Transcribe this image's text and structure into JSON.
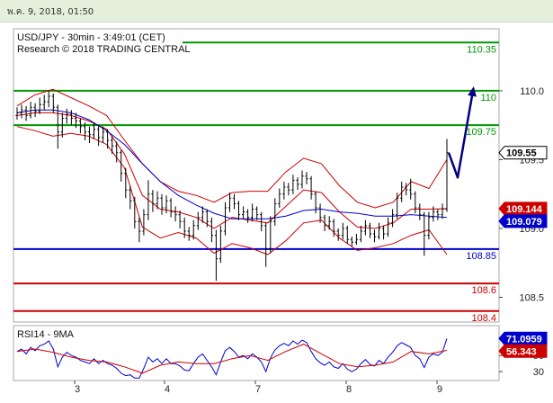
{
  "header": {
    "datetime": "พ.ค. 9, 2018, 01:50"
  },
  "colors": {
    "topbar": "#e5efdc",
    "candle": "#000000",
    "band": "#cc0000",
    "moving_average": "#0000cc",
    "arrow": "#000080",
    "resistance": "#009900",
    "support_blue": "#0000cc",
    "support_red": "#cc0000",
    "rsi": "#0000cc",
    "rsi_ma": "#cc0000",
    "last_price_box": "#ffffff"
  },
  "chart_data": [
    {
      "type": "bar",
      "title": "USD/JPY - 30min - 3:49:01 (CET)",
      "subtitle": "Research © 2018 TRADING CENTRAL",
      "ylim": [
        108.32,
        110.45
      ],
      "grid": false,
      "y_ticks": [
        "110.0",
        "109.5",
        "109.0",
        "108.5"
      ],
      "x_ticks": [
        "3",
        "4",
        "7",
        "8",
        "9"
      ],
      "ohlc": [
        [
          109.82,
          109.88,
          109.79,
          109.84
        ],
        [
          109.84,
          109.9,
          109.8,
          109.86
        ],
        [
          109.86,
          109.89,
          109.78,
          109.82
        ],
        [
          109.82,
          109.92,
          109.8,
          109.88
        ],
        [
          109.88,
          109.91,
          109.81,
          109.85
        ],
        [
          109.85,
          109.95,
          109.83,
          109.9
        ],
        [
          109.9,
          109.97,
          109.86,
          109.92
        ],
        [
          109.92,
          110.0,
          109.88,
          109.96
        ],
        [
          109.96,
          109.98,
          109.84,
          109.88
        ],
        [
          109.88,
          109.9,
          109.58,
          109.7
        ],
        [
          109.7,
          109.84,
          109.66,
          109.8
        ],
        [
          109.8,
          109.87,
          109.76,
          109.83
        ],
        [
          109.83,
          109.86,
          109.75,
          109.8
        ],
        [
          109.8,
          109.84,
          109.73,
          109.78
        ],
        [
          109.78,
          109.8,
          109.69,
          109.74
        ],
        [
          109.74,
          109.77,
          109.64,
          109.7
        ],
        [
          109.7,
          109.74,
          109.62,
          109.68
        ],
        [
          109.68,
          109.77,
          109.65,
          109.72
        ],
        [
          109.72,
          109.75,
          109.6,
          109.66
        ],
        [
          109.66,
          109.74,
          109.62,
          109.7
        ],
        [
          109.7,
          109.72,
          109.58,
          109.64
        ],
        [
          109.64,
          109.67,
          109.54,
          109.6
        ],
        [
          109.6,
          109.63,
          109.48,
          109.55
        ],
        [
          109.55,
          109.57,
          109.34,
          109.4
        ],
        [
          109.4,
          109.44,
          109.22,
          109.28
        ],
        [
          109.28,
          109.31,
          109.14,
          109.2
        ],
        [
          109.2,
          109.23,
          109.0,
          109.05
        ],
        [
          109.05,
          109.08,
          108.9,
          108.98
        ],
        [
          108.98,
          109.14,
          108.95,
          109.1
        ],
        [
          109.1,
          109.35,
          109.06,
          109.25
        ],
        [
          109.25,
          109.28,
          109.12,
          109.18
        ],
        [
          109.18,
          109.27,
          109.14,
          109.22
        ],
        [
          109.22,
          109.25,
          109.1,
          109.15
        ],
        [
          109.15,
          109.24,
          109.11,
          109.2
        ],
        [
          109.2,
          109.22,
          109.08,
          109.12
        ],
        [
          109.12,
          109.16,
          109.05,
          109.1
        ],
        [
          109.1,
          109.13,
          109.0,
          109.05
        ],
        [
          109.05,
          109.08,
          108.93,
          108.98
        ],
        [
          108.98,
          109.01,
          108.91,
          108.95
        ],
        [
          108.95,
          109.06,
          108.92,
          109.02
        ],
        [
          109.02,
          109.12,
          108.99,
          109.08
        ],
        [
          109.08,
          109.16,
          109.04,
          109.12
        ],
        [
          109.12,
          109.14,
          109.01,
          109.05
        ],
        [
          109.05,
          109.08,
          108.9,
          108.95
        ],
        [
          108.95,
          108.99,
          108.62,
          108.78
        ],
        [
          108.78,
          109.02,
          108.75,
          108.98
        ],
        [
          108.98,
          109.19,
          108.95,
          109.15
        ],
        [
          109.15,
          109.26,
          109.12,
          109.22
        ],
        [
          109.22,
          109.25,
          109.14,
          109.18
        ],
        [
          109.18,
          109.2,
          109.06,
          109.1
        ],
        [
          109.1,
          109.16,
          109.07,
          109.12
        ],
        [
          109.12,
          109.14,
          109.04,
          109.08
        ],
        [
          109.08,
          109.18,
          109.05,
          109.14
        ],
        [
          109.14,
          109.16,
          109.06,
          109.1
        ],
        [
          109.1,
          109.12,
          108.98,
          109.02
        ],
        [
          109.02,
          109.04,
          108.72,
          108.85
        ],
        [
          108.85,
          109.09,
          108.82,
          109.05
        ],
        [
          109.05,
          109.22,
          109.02,
          109.18
        ],
        [
          109.18,
          109.29,
          109.15,
          109.25
        ],
        [
          109.25,
          109.34,
          109.21,
          109.3
        ],
        [
          109.3,
          109.33,
          109.24,
          109.28
        ],
        [
          109.28,
          109.39,
          109.25,
          109.35
        ],
        [
          109.35,
          109.37,
          109.28,
          109.32
        ],
        [
          109.32,
          109.42,
          109.29,
          109.38
        ],
        [
          109.38,
          109.41,
          109.32,
          109.36
        ],
        [
          109.36,
          109.38,
          109.21,
          109.25
        ],
        [
          109.25,
          109.27,
          109.11,
          109.15
        ],
        [
          109.15,
          109.18,
          109.04,
          109.08
        ],
        [
          109.08,
          109.1,
          108.98,
          109.02
        ],
        [
          109.02,
          109.09,
          108.99,
          109.05
        ],
        [
          109.05,
          109.07,
          108.94,
          108.98
        ],
        [
          108.98,
          109.0,
          108.91,
          108.95
        ],
        [
          108.95,
          109.04,
          108.92,
          109.0
        ],
        [
          109.0,
          109.02,
          108.89,
          108.92
        ],
        [
          108.92,
          108.94,
          108.87,
          108.9
        ],
        [
          108.9,
          108.96,
          108.88,
          108.92
        ],
        [
          108.92,
          109.02,
          108.9,
          108.98
        ],
        [
          108.98,
          109.06,
          108.95,
          109.02
        ],
        [
          109.02,
          109.04,
          108.93,
          108.96
        ],
        [
          108.96,
          108.99,
          108.9,
          108.94
        ],
        [
          108.94,
          109.04,
          108.92,
          109.0
        ],
        [
          109.0,
          109.02,
          108.92,
          108.96
        ],
        [
          108.96,
          109.08,
          108.94,
          109.04
        ],
        [
          109.04,
          109.14,
          109.01,
          109.1
        ],
        [
          109.1,
          109.26,
          109.07,
          109.22
        ],
        [
          109.22,
          109.34,
          109.19,
          109.3
        ],
        [
          109.3,
          109.33,
          109.24,
          109.28
        ],
        [
          109.28,
          109.36,
          109.21,
          109.25
        ],
        [
          109.25,
          109.27,
          109.11,
          109.15
        ],
        [
          109.15,
          109.18,
          109.06,
          109.1
        ],
        [
          109.1,
          109.12,
          108.8,
          108.95
        ],
        [
          108.95,
          109.12,
          108.92,
          109.08
        ],
        [
          109.08,
          109.16,
          109.05,
          109.12
        ],
        [
          109.12,
          109.14,
          109.06,
          109.1
        ],
        [
          109.1,
          109.18,
          109.07,
          109.14
        ],
        [
          109.14,
          109.65,
          109.12,
          109.55
        ]
      ],
      "series": [
        {
          "color": "#cc0000",
          "values": [
            109.89,
            109.97,
            110.01,
            109.95,
            109.89,
            109.82,
            109.64,
            109.47,
            109.34,
            109.27,
            109.24,
            109.19,
            109.26,
            109.27,
            109.27,
            109.41,
            109.51,
            109.47,
            109.31,
            109.19,
            109.15,
            109.19,
            109.34,
            109.29,
            109.5
          ]
        },
        {
          "color": "#cc0000",
          "values": [
            109.82,
            109.84,
            109.84,
            109.82,
            109.78,
            109.72,
            109.54,
            109.24,
            109.14,
            109.12,
            109.08,
            109.0,
            109.08,
            109.06,
            109.04,
            109.16,
            109.28,
            109.26,
            109.12,
            109.01,
            109.0,
            109.04,
            109.14,
            109.14,
            109.144
          ],
          "last_label": "109.144"
        },
        {
          "color": "#cc0000",
          "values": [
            109.74,
            109.71,
            109.67,
            109.69,
            109.67,
            109.61,
            109.44,
            109.01,
            108.93,
            108.97,
            108.93,
            108.82,
            108.89,
            108.86,
            108.81,
            108.91,
            109.04,
            109.06,
            108.93,
            108.84,
            108.86,
            108.89,
            108.95,
            108.99,
            108.81
          ]
        },
        {
          "color": "#0000cc",
          "values": [
            109.84,
            109.86,
            109.86,
            109.84,
            109.79,
            109.71,
            109.61,
            109.47,
            109.34,
            109.24,
            109.17,
            109.11,
            109.07,
            109.07,
            109.07,
            109.09,
            109.13,
            109.14,
            109.12,
            109.11,
            109.09,
            109.09,
            109.1,
            109.09,
            109.079
          ],
          "last_label": "109.079"
        }
      ],
      "last_price_label": "109.55",
      "levels": [
        {
          "value": 110.35,
          "label": "110.35",
          "color": "#009900"
        },
        {
          "value": 110.0,
          "label": "110",
          "color": "#009900"
        },
        {
          "value": 109.75,
          "label": "109.75",
          "color": "#009900"
        },
        {
          "value": 108.85,
          "label": "108.85",
          "color": "#0000cc"
        },
        {
          "value": 108.6,
          "label": "108.6",
          "color": "#cc0000"
        },
        {
          "value": 108.4,
          "label": "108.4",
          "color": "#cc0000"
        }
      ],
      "forecast_arrow": [
        109.55,
        109.37,
        110.0
      ]
    },
    {
      "type": "line",
      "title": "RSI14 - 9MA",
      "ylim": [
        19,
        87
      ],
      "y_ticks": [
        "70",
        "50",
        "30"
      ],
      "series": [
        {
          "color": "#0000cc",
          "values": [
            55,
            58,
            52,
            60,
            56,
            62,
            64,
            68,
            58,
            36,
            48,
            54,
            50,
            48,
            44,
            42,
            40,
            46,
            40,
            44,
            40,
            38,
            34,
            28,
            25,
            26,
            22,
            22,
            34,
            48,
            42,
            46,
            40,
            46,
            40,
            40,
            37,
            32,
            31,
            40,
            48,
            52,
            44,
            36,
            26,
            42,
            56,
            60,
            55,
            48,
            50,
            46,
            52,
            48,
            42,
            30,
            47,
            57,
            62,
            65,
            62,
            68,
            64,
            69,
            66,
            55,
            46,
            41,
            38,
            42,
            36,
            34,
            40,
            33,
            30,
            33,
            40,
            45,
            39,
            37,
            44,
            40,
            48,
            54,
            62,
            66,
            63,
            60,
            50,
            46,
            35,
            48,
            52,
            50,
            54,
            71.0959
          ],
          "last_label": "71.0959"
        },
        {
          "color": "#cc0000",
          "values": [
            55,
            58,
            54,
            48,
            44,
            42,
            36,
            28,
            38,
            42,
            40,
            40,
            46,
            50,
            44,
            55,
            64,
            52,
            40,
            36,
            38,
            42,
            55,
            52,
            56.343
          ],
          "last_label": "56.343"
        }
      ]
    }
  ]
}
